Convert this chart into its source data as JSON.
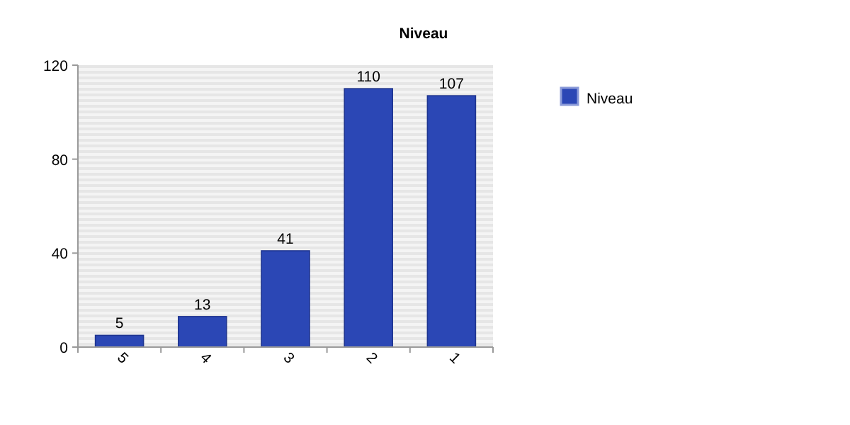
{
  "chart_data": {
    "type": "bar",
    "title": "Niveau",
    "categories": [
      "5",
      "4",
      "3",
      "2",
      "1"
    ],
    "series": [
      {
        "name": "Niveau",
        "color": "#2b47b5",
        "values": [
          5,
          13,
          41,
          110,
          107
        ]
      }
    ],
    "ylim": [
      0,
      120
    ],
    "yticks": [
      0,
      40,
      80,
      120
    ],
    "data_labels": true,
    "legend": "right",
    "grid": false
  }
}
